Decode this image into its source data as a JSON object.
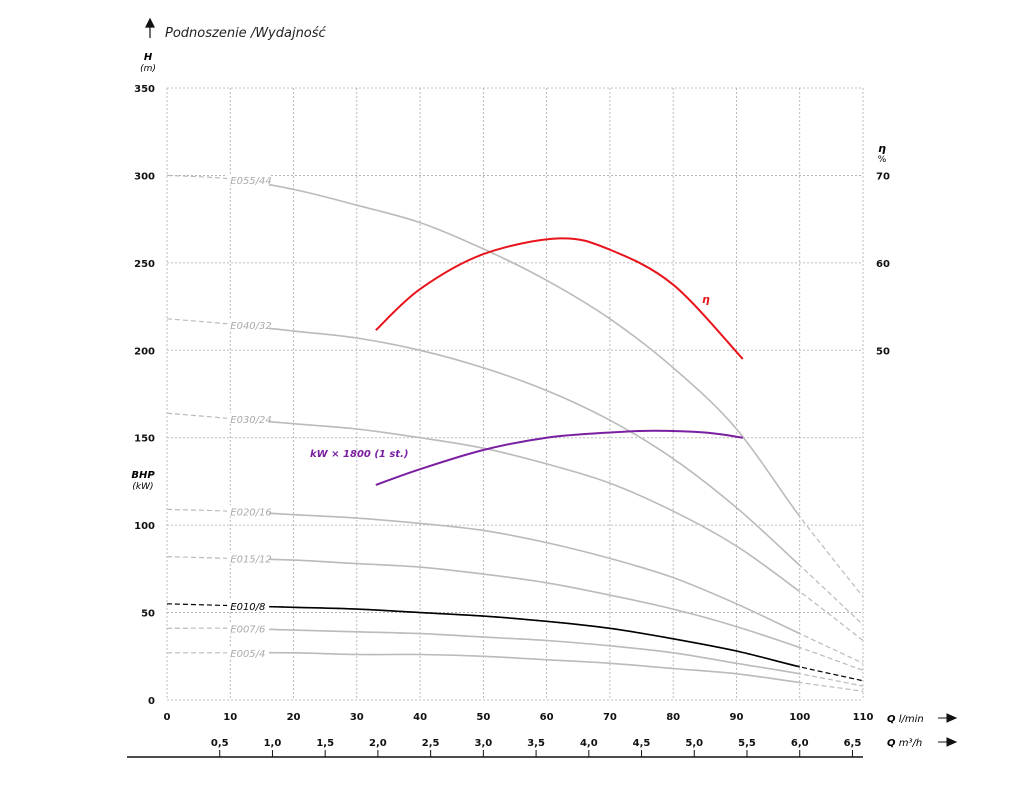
{
  "chart_data": {
    "type": "line",
    "title": "Podnoszenie /Wydajność",
    "ylabel": "H",
    "ylabel_unit": "(m)",
    "y2label": "η",
    "y2label_unit": "%",
    "bhp_label": "BHP",
    "bhp_unit": "(kW)",
    "xlabel": "Q",
    "xlabel_unit": "l/min",
    "x2label": "Q",
    "x2label_unit": "m³/h",
    "xlim": [
      0,
      110
    ],
    "ylim": [
      0,
      350
    ],
    "x_ticks": [
      0,
      10,
      20,
      30,
      40,
      50,
      60,
      70,
      80,
      90,
      100,
      110
    ],
    "y_ticks": [
      0,
      50,
      100,
      150,
      200,
      250,
      300,
      350
    ],
    "y2_ticks": [
      50,
      60,
      70
    ],
    "x2_ticks": [
      "0,5",
      "1,0",
      "1,5",
      "2,0",
      "2,5",
      "3,0",
      "3,5",
      "4,0",
      "4,5",
      "5,0",
      "5,5",
      "6,0",
      "6,5"
    ],
    "grid": true,
    "x": [
      0,
      10,
      20,
      30,
      40,
      50,
      60,
      70,
      80,
      90,
      100,
      110
    ],
    "series": [
      {
        "name": "E055/44",
        "color": "#bbbbbb",
        "values": [
          300,
          298,
          292,
          283,
          273,
          258,
          240,
          218,
          190,
          155,
          105,
          59
        ]
      },
      {
        "name": "E040/32",
        "color": "#bbbbbb",
        "values": [
          218,
          215,
          211,
          207,
          200,
          190,
          177,
          160,
          138,
          110,
          77,
          43
        ]
      },
      {
        "name": "E030/24",
        "color": "#bbbbbb",
        "values": [
          164,
          161,
          158,
          155,
          150,
          144,
          135,
          124,
          108,
          88,
          62,
          34
        ]
      },
      {
        "name": "E020/16",
        "color": "#bbbbbb",
        "values": [
          109,
          108,
          106,
          104,
          101,
          97,
          90,
          81,
          70,
          55,
          38,
          21
        ]
      },
      {
        "name": "E015/12",
        "color": "#bbbbbb",
        "values": [
          82,
          81,
          80,
          78,
          76,
          72,
          67,
          60,
          52,
          42,
          30,
          17
        ]
      },
      {
        "name": "E010/8",
        "color": "#000000",
        "values": [
          55,
          54,
          53,
          52,
          50,
          48,
          45,
          41,
          35,
          28,
          19,
          11
        ]
      },
      {
        "name": "E007/6",
        "color": "#bbbbbb",
        "values": [
          41,
          41,
          40,
          39,
          38,
          36,
          34,
          31,
          27,
          21,
          15,
          8
        ]
      },
      {
        "name": "E005/4",
        "color": "#bbbbbb",
        "values": [
          27,
          27,
          27,
          26,
          26,
          25,
          23,
          21,
          18,
          15,
          10,
          5
        ]
      }
    ],
    "efficiency": {
      "name": "η",
      "color": "#e8141c",
      "x": [
        33,
        40,
        50,
        62,
        70,
        80,
        91
      ],
      "values": [
        52.3,
        57,
        61,
        62.8,
        61.5,
        57.5,
        49
      ]
    },
    "power": {
      "name": "kW × 1800 (1 st.)",
      "color": "#7a1fa2",
      "x": [
        33,
        40,
        50,
        60,
        70,
        77,
        85,
        91
      ],
      "values_on_h_scale": [
        123,
        132,
        143,
        150,
        153,
        154,
        153,
        150
      ]
    }
  }
}
